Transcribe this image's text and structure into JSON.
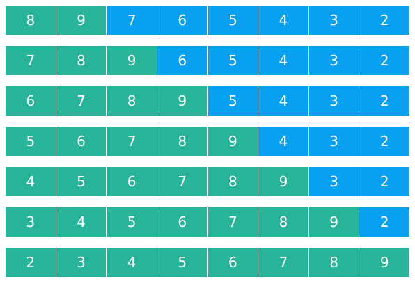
{
  "colors": {
    "sorted": "#27b498",
    "unsorted": "#0aa0f0",
    "text": "#ffffff"
  },
  "rows": [
    {
      "values": [
        "8",
        "9",
        "7",
        "6",
        "5",
        "4",
        "3",
        "2"
      ],
      "sorted_count": 2
    },
    {
      "values": [
        "7",
        "8",
        "9",
        "6",
        "5",
        "4",
        "3",
        "2"
      ],
      "sorted_count": 3
    },
    {
      "values": [
        "6",
        "7",
        "8",
        "9",
        "5",
        "4",
        "3",
        "2"
      ],
      "sorted_count": 4
    },
    {
      "values": [
        "5",
        "6",
        "7",
        "8",
        "9",
        "4",
        "3",
        "2"
      ],
      "sorted_count": 5
    },
    {
      "values": [
        "4",
        "5",
        "6",
        "7",
        "8",
        "9",
        "3",
        "2"
      ],
      "sorted_count": 6
    },
    {
      "values": [
        "3",
        "4",
        "5",
        "6",
        "7",
        "8",
        "9",
        "2"
      ],
      "sorted_count": 7
    },
    {
      "values": [
        "2",
        "3",
        "4",
        "5",
        "6",
        "7",
        "8",
        "9"
      ],
      "sorted_count": 8
    }
  ]
}
